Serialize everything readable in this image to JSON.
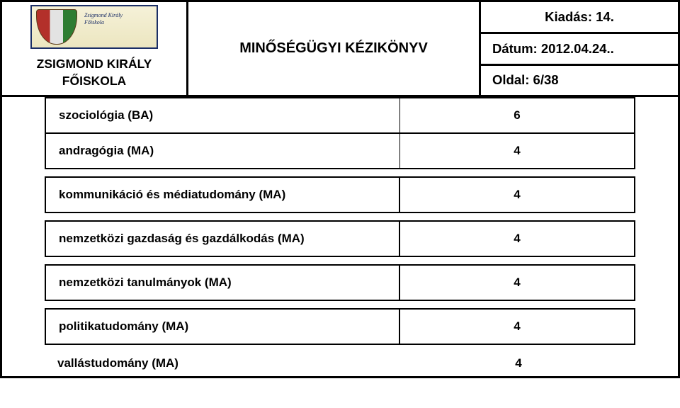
{
  "header": {
    "school_line1": "ZSIGMOND KIRÁLY",
    "school_line2": "FŐISKOLA",
    "title": "MINŐSÉGÜGYI KÉZIKÖNYV",
    "edition": "Kiadás: 14.",
    "date": "Dátum: 2012.04.24..",
    "page": "Oldal: 6/38",
    "crest_line1": "Zsigmond Király",
    "crest_line2": "Főiskola"
  },
  "rows": [
    {
      "label": "szociológia (BA)",
      "value": "6"
    },
    {
      "label": "andragógia (MA)",
      "value": "4"
    },
    {
      "label": "kommunikáció és médiatudomány (MA)",
      "value": "4"
    },
    {
      "label": "nemzetközi gazdaság és gazdálkodás (MA)",
      "value": "4"
    },
    {
      "label": "nemzetközi tanulmányok (MA)",
      "value": "4"
    },
    {
      "label": "politikatudomány (MA)",
      "value": "4"
    },
    {
      "label": "vallástudomány (MA)",
      "value": "4"
    }
  ],
  "style": {
    "border_color": "#000000",
    "background": "#ffffff",
    "font_size_label": 17,
    "font_size_header": 20
  }
}
